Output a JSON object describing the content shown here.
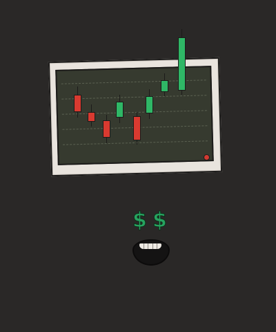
{
  "scene": {
    "description_free": true,
    "eyes": {
      "left_symbol": "$",
      "right_symbol": "$",
      "color": "#27a35f"
    },
    "monitor": {
      "frame_color": "#e9e4de",
      "screen_color": "#363a2f",
      "led_color": "#d13a31"
    }
  },
  "chart_data": {
    "type": "candlestick",
    "title": "",
    "xlabel": "",
    "ylabel": "",
    "grid": true,
    "legend": "none",
    "colors": {
      "up": "#2fb766",
      "down": "#d93a30"
    },
    "candles": [
      {
        "index": 1,
        "open": 6.9,
        "close": 5.7,
        "high": 7.5,
        "low": 5.2,
        "direction": "down"
      },
      {
        "index": 2,
        "open": 5.6,
        "close": 5.0,
        "high": 6.2,
        "low": 4.5,
        "direction": "down"
      },
      {
        "index": 3,
        "open": 5.0,
        "close": 3.8,
        "high": 5.4,
        "low": 3.3,
        "direction": "down"
      },
      {
        "index": 4,
        "open": 5.3,
        "close": 6.4,
        "high": 6.9,
        "low": 4.8,
        "direction": "up"
      },
      {
        "index": 5,
        "open": 5.3,
        "close": 3.6,
        "high": 5.6,
        "low": 3.2,
        "direction": "down"
      },
      {
        "index": 6,
        "open": 5.6,
        "close": 6.8,
        "high": 7.3,
        "low": 5.1,
        "direction": "up"
      },
      {
        "index": 7,
        "open": 7.2,
        "close": 8.0,
        "high": 8.5,
        "low": 6.8,
        "direction": "up"
      },
      {
        "index": 8,
        "open": 7.3,
        "close": 11.2,
        "high": 11.8,
        "low": 6.9,
        "direction": "up"
      }
    ],
    "ylim": [
      2,
      12
    ]
  }
}
